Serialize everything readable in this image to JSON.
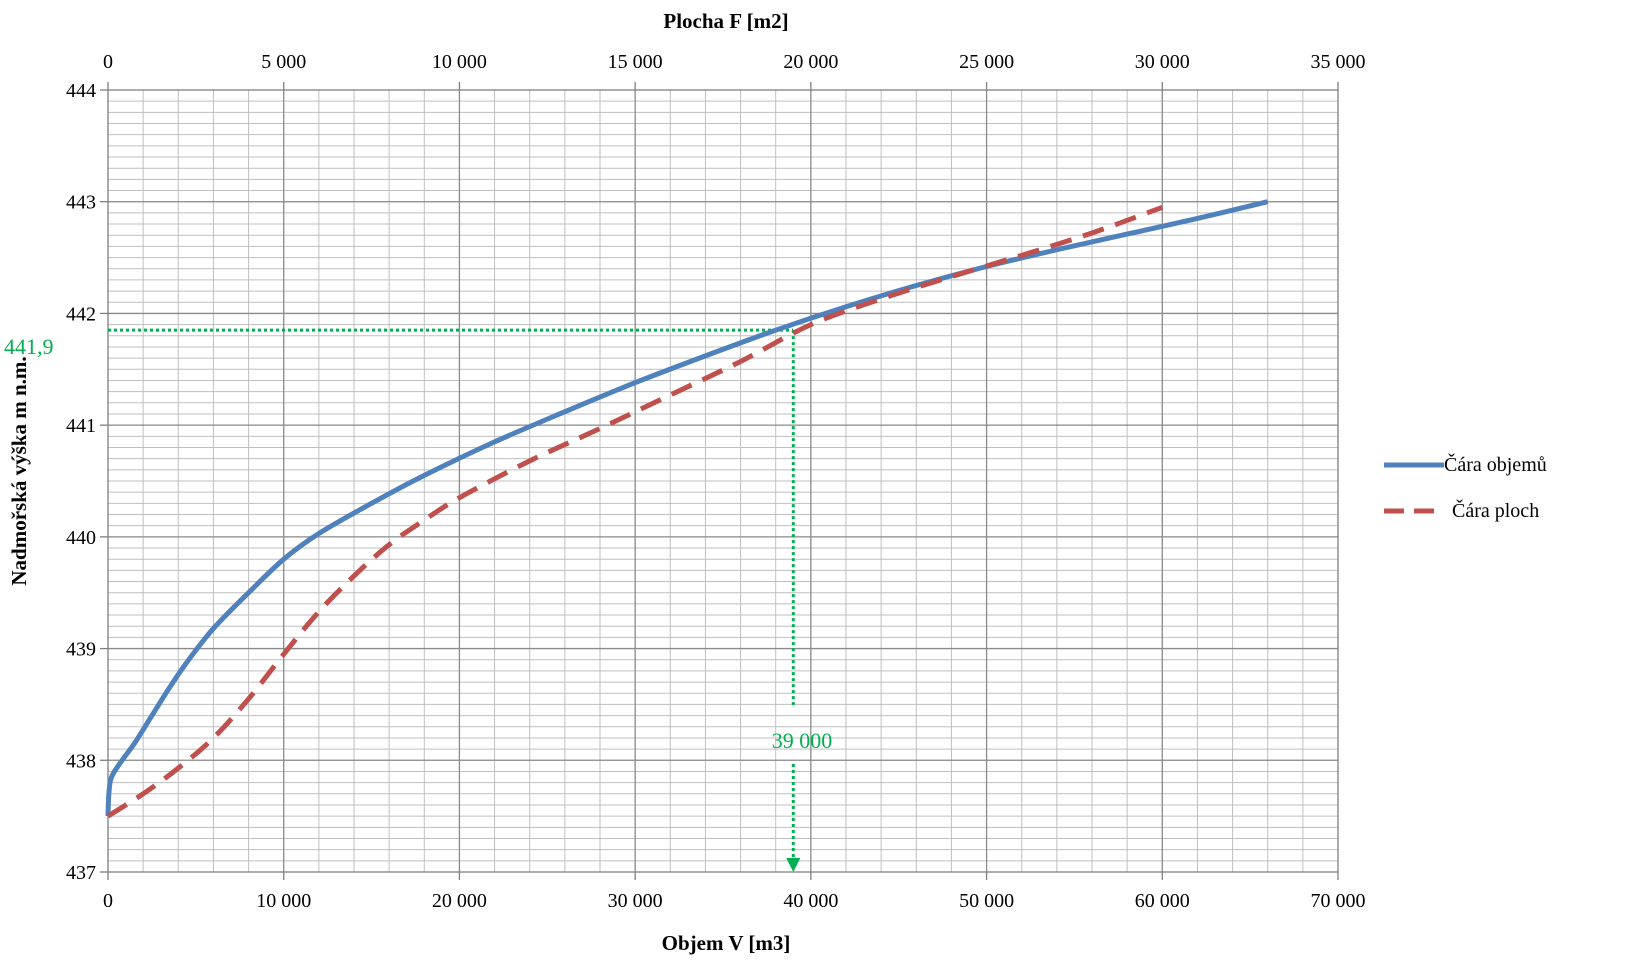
{
  "chart_data": {
    "type": "line",
    "top_axis_title": "Plocha F [m2]",
    "bottom_axis_title": "Objem V [m3]",
    "y_axis_title": "Nadmořská výška m n.m.",
    "y_range": [
      437,
      444
    ],
    "y_ticks": [
      "437",
      "438",
      "439",
      "440",
      "441",
      "442",
      "443",
      "444"
    ],
    "bottom_axis_range": [
      0,
      70000
    ],
    "bottom_ticks": [
      "0",
      "10 000",
      "20 000",
      "30 000",
      "40 000",
      "50 000",
      "60 000",
      "70 000"
    ],
    "top_axis_range": [
      0,
      35000
    ],
    "top_ticks": [
      "0",
      "5 000",
      "10 000",
      "15 000",
      "20 000",
      "25 000",
      "30 000",
      "35 000"
    ],
    "grid": true,
    "legend_position": "right",
    "series": [
      {
        "name": "Čára objemů",
        "axis": "bottom",
        "color": "#4f81bd",
        "style": "solid",
        "points": [
          [
            0,
            437.5
          ],
          [
            50,
            437.7
          ],
          [
            200,
            437.85
          ],
          [
            800,
            438.0
          ],
          [
            1500,
            438.15
          ],
          [
            2500,
            438.4
          ],
          [
            3500,
            438.65
          ],
          [
            4500,
            438.88
          ],
          [
            6000,
            439.18
          ],
          [
            8000,
            439.5
          ],
          [
            10000,
            439.8
          ],
          [
            12000,
            440.03
          ],
          [
            15000,
            440.3
          ],
          [
            18000,
            440.55
          ],
          [
            22000,
            440.85
          ],
          [
            26000,
            441.12
          ],
          [
            30000,
            441.38
          ],
          [
            34000,
            441.62
          ],
          [
            38000,
            441.85
          ],
          [
            42000,
            442.06
          ],
          [
            46000,
            442.25
          ],
          [
            50000,
            442.42
          ],
          [
            54000,
            442.57
          ],
          [
            58000,
            442.71
          ],
          [
            62000,
            442.85
          ],
          [
            66000,
            443.0
          ]
        ]
      },
      {
        "name": "Čára ploch",
        "axis": "top",
        "color": "#c0504d",
        "style": "dashed",
        "points": [
          [
            0,
            437.5
          ],
          [
            1000,
            437.7
          ],
          [
            2000,
            437.93
          ],
          [
            3000,
            438.2
          ],
          [
            4000,
            438.55
          ],
          [
            5000,
            438.95
          ],
          [
            6000,
            439.33
          ],
          [
            7000,
            439.65
          ],
          [
            8000,
            439.93
          ],
          [
            9000,
            440.15
          ],
          [
            10000,
            440.35
          ],
          [
            12000,
            440.68
          ],
          [
            14000,
            440.97
          ],
          [
            16000,
            441.27
          ],
          [
            18000,
            441.57
          ],
          [
            20000,
            441.9
          ],
          [
            22000,
            442.13
          ],
          [
            24000,
            442.33
          ],
          [
            26000,
            442.52
          ],
          [
            28000,
            442.72
          ],
          [
            30000,
            442.95
          ]
        ]
      }
    ],
    "annotations": {
      "guide_color": "#00b050",
      "level_label": "441,9",
      "level_value": 441.85,
      "volume_label": "39 000",
      "volume_value": 39000
    }
  }
}
